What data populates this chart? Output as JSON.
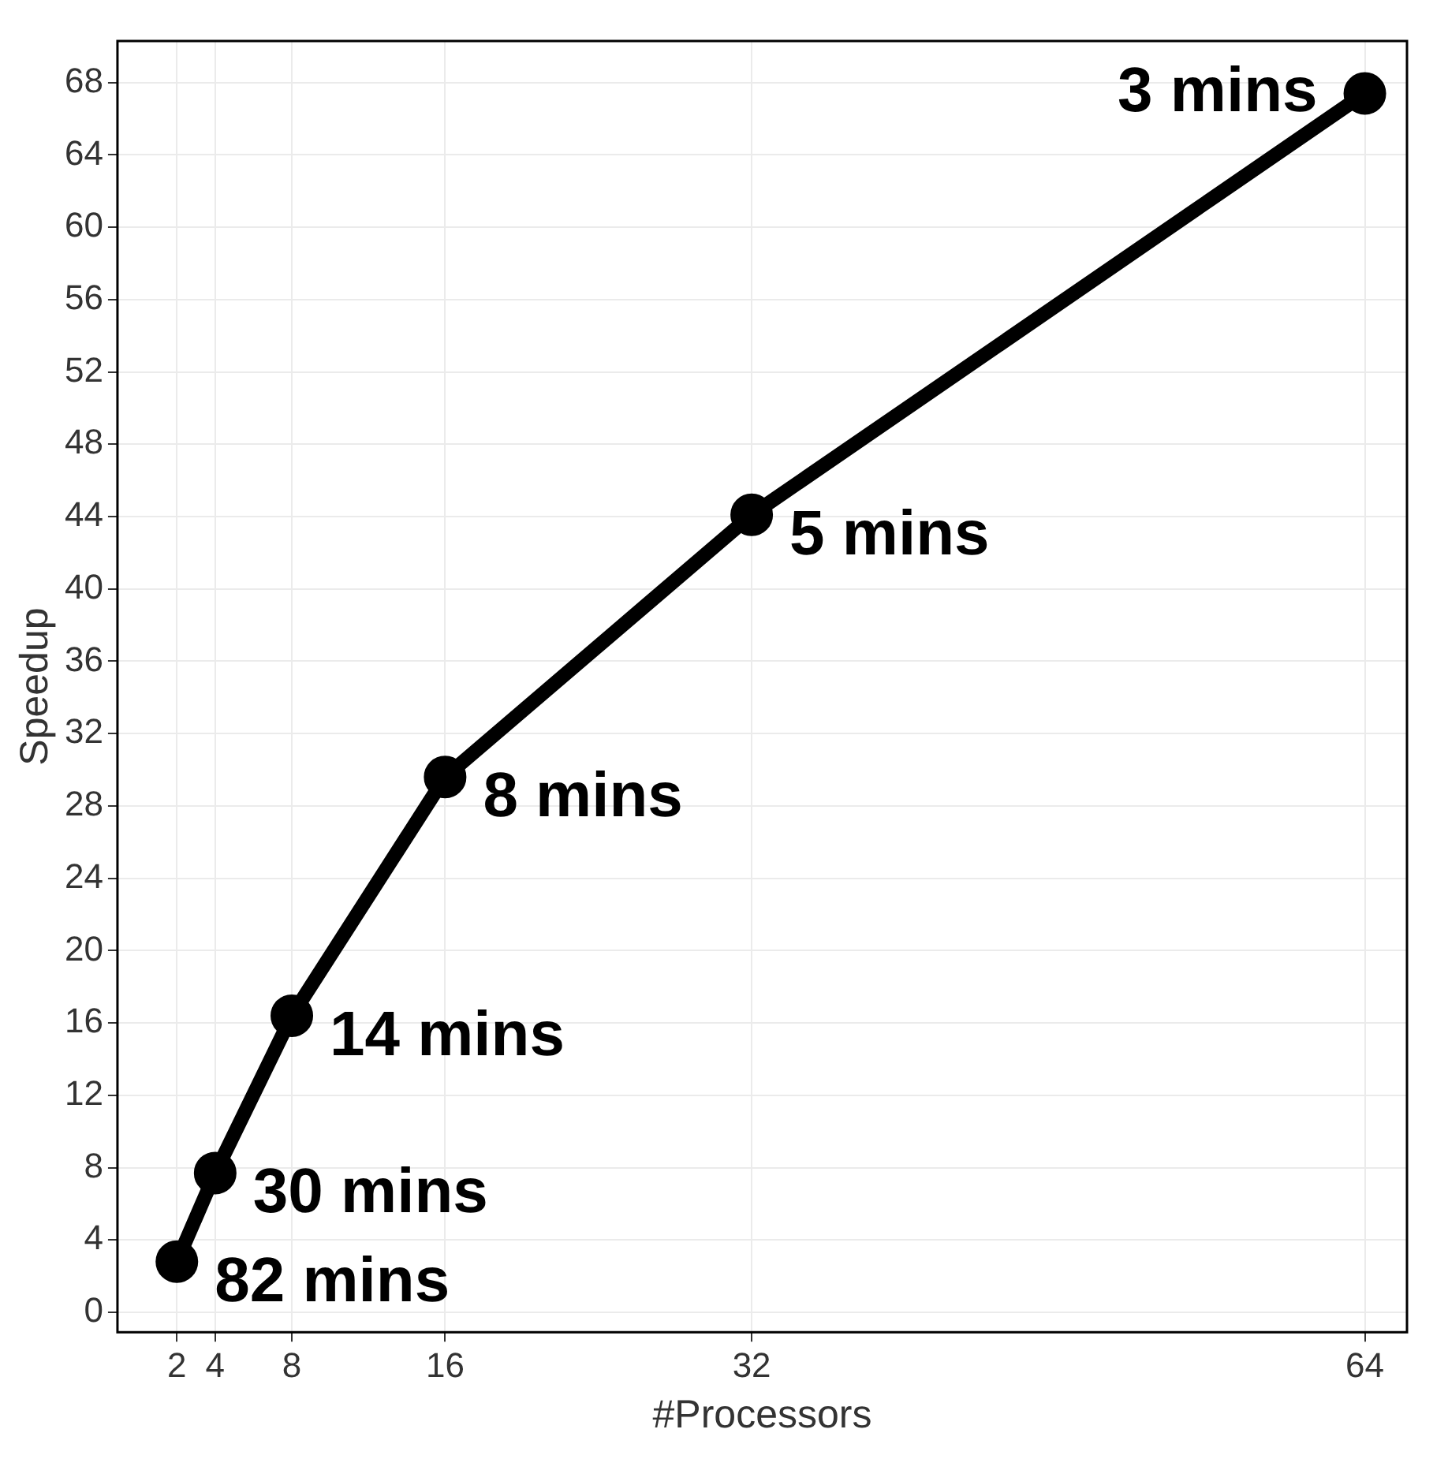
{
  "chart_data": {
    "type": "line",
    "xlabel": "#Processors",
    "ylabel": "Speedup",
    "x": [
      2,
      4,
      8,
      16,
      32,
      64
    ],
    "series": [
      {
        "color": "#000000",
        "values": [
          2.8,
          7.7,
          16.4,
          29.6,
          44.1,
          67.4
        ]
      }
    ],
    "xlim": [
      -1.1,
      66.2
    ],
    "xticks": [
      2,
      4,
      8,
      16,
      32,
      64
    ],
    "ylim": [
      -1.1,
      70.3
    ],
    "yticks": [
      0,
      4,
      8,
      12,
      16,
      20,
      24,
      28,
      32,
      36,
      40,
      44,
      48,
      52,
      56,
      60,
      64,
      68
    ],
    "grid": true,
    "legend": false,
    "marker": "circle",
    "line_style": "solid",
    "annotations": [
      {
        "text": "82 mins",
        "x": 2,
        "y": 2.8
      },
      {
        "text": "30 mins",
        "x": 4,
        "y": 7.7
      },
      {
        "text": "14 mins",
        "x": 8,
        "y": 16.4
      },
      {
        "text": "8 mins",
        "x": 16,
        "y": 29.6
      },
      {
        "text": "5 mins",
        "x": 32,
        "y": 44.1
      },
      {
        "text": "3 mins",
        "x": 64,
        "y": 67.4
      }
    ]
  }
}
